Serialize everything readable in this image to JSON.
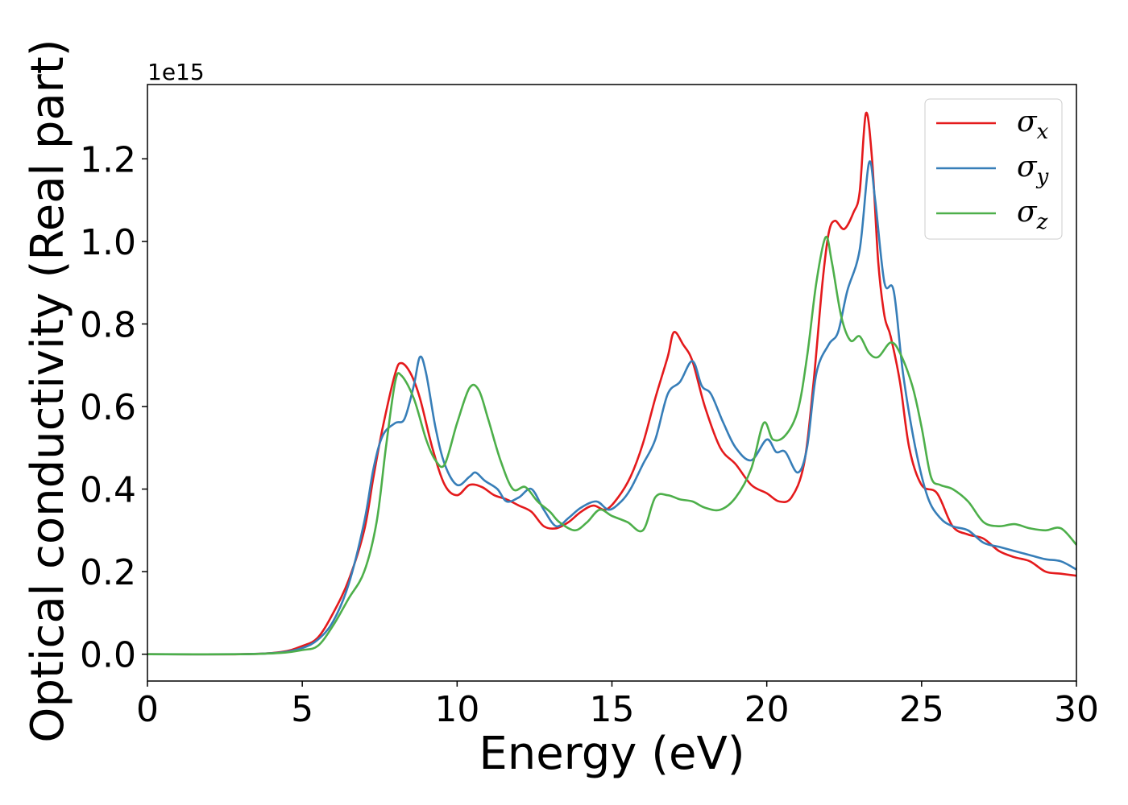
{
  "chart_data": {
    "type": "line",
    "xlabel": "Energy (eV)",
    "ylabel": "Optical conductivity (Real part)",
    "y_offset_label": "1e15",
    "xlim": [
      0,
      30
    ],
    "ylim": [
      -0.065,
      1.38
    ],
    "x_ticks": [
      0,
      5,
      10,
      15,
      20,
      25,
      30
    ],
    "x_tick_labels": [
      "0",
      "5",
      "10",
      "15",
      "20",
      "25",
      "30"
    ],
    "y_ticks": [
      0.0,
      0.2,
      0.4,
      0.6,
      0.8,
      1.0,
      1.2
    ],
    "y_tick_labels": [
      "0.0",
      "0.2",
      "0.4",
      "0.6",
      "0.8",
      "1.0",
      "1.2"
    ],
    "grid": false,
    "legend_position": "top-right",
    "series": [
      {
        "name": "σ_x",
        "label_base": "σ",
        "label_sub": "x",
        "color": "#e41a1c",
        "points": [
          [
            0,
            0
          ],
          [
            3,
            0
          ],
          [
            4.3,
            0.005
          ],
          [
            5,
            0.02
          ],
          [
            5.5,
            0.04
          ],
          [
            6,
            0.1
          ],
          [
            6.5,
            0.18
          ],
          [
            7,
            0.3
          ],
          [
            7.3,
            0.43
          ],
          [
            7.6,
            0.55
          ],
          [
            8,
            0.68
          ],
          [
            8.2,
            0.705
          ],
          [
            8.5,
            0.68
          ],
          [
            8.8,
            0.62
          ],
          [
            9.2,
            0.5
          ],
          [
            9.6,
            0.41
          ],
          [
            10,
            0.385
          ],
          [
            10.4,
            0.41
          ],
          [
            10.8,
            0.405
          ],
          [
            11.2,
            0.385
          ],
          [
            11.6,
            0.375
          ],
          [
            12,
            0.36
          ],
          [
            12.4,
            0.345
          ],
          [
            12.8,
            0.31
          ],
          [
            13.2,
            0.305
          ],
          [
            13.6,
            0.32
          ],
          [
            14,
            0.345
          ],
          [
            14.4,
            0.36
          ],
          [
            14.8,
            0.35
          ],
          [
            15.2,
            0.38
          ],
          [
            15.6,
            0.43
          ],
          [
            16,
            0.51
          ],
          [
            16.4,
            0.62
          ],
          [
            16.8,
            0.72
          ],
          [
            17,
            0.78
          ],
          [
            17.3,
            0.75
          ],
          [
            17.6,
            0.71
          ],
          [
            18,
            0.6
          ],
          [
            18.5,
            0.5
          ],
          [
            19,
            0.46
          ],
          [
            19.5,
            0.41
          ],
          [
            20,
            0.39
          ],
          [
            20.4,
            0.37
          ],
          [
            20.8,
            0.38
          ],
          [
            21.2,
            0.46
          ],
          [
            21.5,
            0.65
          ],
          [
            21.8,
            0.9
          ],
          [
            22,
            1.02
          ],
          [
            22.2,
            1.05
          ],
          [
            22.5,
            1.03
          ],
          [
            22.8,
            1.07
          ],
          [
            23,
            1.12
          ],
          [
            23.2,
            1.31
          ],
          [
            23.4,
            1.2
          ],
          [
            23.6,
            0.95
          ],
          [
            23.8,
            0.82
          ],
          [
            24,
            0.77
          ],
          [
            24.3,
            0.66
          ],
          [
            24.6,
            0.5
          ],
          [
            25,
            0.41
          ],
          [
            25.5,
            0.39
          ],
          [
            26,
            0.31
          ],
          [
            26.5,
            0.29
          ],
          [
            27,
            0.28
          ],
          [
            27.5,
            0.25
          ],
          [
            28,
            0.235
          ],
          [
            28.5,
            0.225
          ],
          [
            29,
            0.2
          ],
          [
            29.5,
            0.195
          ],
          [
            30,
            0.19
          ]
        ]
      },
      {
        "name": "σ_y",
        "label_base": "σ",
        "label_sub": "y",
        "color": "#377eb8",
        "points": [
          [
            0,
            0
          ],
          [
            3,
            0
          ],
          [
            4.3,
            0.004
          ],
          [
            5,
            0.015
          ],
          [
            5.5,
            0.035
          ],
          [
            6,
            0.08
          ],
          [
            6.5,
            0.17
          ],
          [
            7,
            0.32
          ],
          [
            7.3,
            0.45
          ],
          [
            7.6,
            0.53
          ],
          [
            8,
            0.56
          ],
          [
            8.3,
            0.57
          ],
          [
            8.6,
            0.65
          ],
          [
            8.8,
            0.72
          ],
          [
            9,
            0.68
          ],
          [
            9.3,
            0.55
          ],
          [
            9.6,
            0.46
          ],
          [
            10,
            0.41
          ],
          [
            10.4,
            0.43
          ],
          [
            10.6,
            0.44
          ],
          [
            10.9,
            0.42
          ],
          [
            11.3,
            0.4
          ],
          [
            11.6,
            0.37
          ],
          [
            12,
            0.38
          ],
          [
            12.4,
            0.4
          ],
          [
            12.8,
            0.35
          ],
          [
            13.2,
            0.31
          ],
          [
            13.6,
            0.33
          ],
          [
            14,
            0.355
          ],
          [
            14.5,
            0.37
          ],
          [
            14.9,
            0.35
          ],
          [
            15.3,
            0.37
          ],
          [
            15.6,
            0.4
          ],
          [
            16,
            0.46
          ],
          [
            16.4,
            0.52
          ],
          [
            16.8,
            0.63
          ],
          [
            17.2,
            0.66
          ],
          [
            17.6,
            0.71
          ],
          [
            17.9,
            0.65
          ],
          [
            18.2,
            0.63
          ],
          [
            18.6,
            0.56
          ],
          [
            19,
            0.5
          ],
          [
            19.5,
            0.47
          ],
          [
            20,
            0.52
          ],
          [
            20.3,
            0.49
          ],
          [
            20.6,
            0.49
          ],
          [
            21,
            0.44
          ],
          [
            21.3,
            0.5
          ],
          [
            21.6,
            0.68
          ],
          [
            22,
            0.75
          ],
          [
            22.3,
            0.78
          ],
          [
            22.6,
            0.88
          ],
          [
            23,
            0.98
          ],
          [
            23.3,
            1.19
          ],
          [
            23.5,
            1.1
          ],
          [
            23.8,
            0.9
          ],
          [
            24.1,
            0.88
          ],
          [
            24.4,
            0.68
          ],
          [
            24.8,
            0.5
          ],
          [
            25.2,
            0.38
          ],
          [
            25.6,
            0.33
          ],
          [
            26,
            0.31
          ],
          [
            26.5,
            0.3
          ],
          [
            27,
            0.27
          ],
          [
            27.5,
            0.26
          ],
          [
            28,
            0.25
          ],
          [
            28.5,
            0.24
          ],
          [
            29,
            0.23
          ],
          [
            29.5,
            0.225
          ],
          [
            30,
            0.205
          ]
        ]
      },
      {
        "name": "σ_z",
        "label_base": "σ",
        "label_sub": "z",
        "color": "#4daf4a",
        "points": [
          [
            0,
            0
          ],
          [
            3,
            0
          ],
          [
            4.3,
            0.003
          ],
          [
            5,
            0.01
          ],
          [
            5.5,
            0.02
          ],
          [
            6,
            0.07
          ],
          [
            6.5,
            0.135
          ],
          [
            7,
            0.2
          ],
          [
            7.4,
            0.32
          ],
          [
            7.7,
            0.5
          ],
          [
            8,
            0.66
          ],
          [
            8.2,
            0.675
          ],
          [
            8.6,
            0.62
          ],
          [
            9,
            0.52
          ],
          [
            9.3,
            0.47
          ],
          [
            9.6,
            0.46
          ],
          [
            10,
            0.56
          ],
          [
            10.4,
            0.645
          ],
          [
            10.7,
            0.64
          ],
          [
            11,
            0.57
          ],
          [
            11.4,
            0.47
          ],
          [
            11.8,
            0.4
          ],
          [
            12.2,
            0.405
          ],
          [
            12.6,
            0.37
          ],
          [
            13,
            0.345
          ],
          [
            13.3,
            0.32
          ],
          [
            13.8,
            0.3
          ],
          [
            14.2,
            0.32
          ],
          [
            14.6,
            0.35
          ],
          [
            15,
            0.335
          ],
          [
            15.5,
            0.32
          ],
          [
            16,
            0.3
          ],
          [
            16.4,
            0.38
          ],
          [
            16.8,
            0.385
          ],
          [
            17.2,
            0.375
          ],
          [
            17.6,
            0.37
          ],
          [
            18,
            0.355
          ],
          [
            18.5,
            0.35
          ],
          [
            19,
            0.38
          ],
          [
            19.5,
            0.45
          ],
          [
            19.9,
            0.56
          ],
          [
            20.2,
            0.52
          ],
          [
            20.6,
            0.53
          ],
          [
            21,
            0.59
          ],
          [
            21.3,
            0.72
          ],
          [
            21.6,
            0.9
          ],
          [
            21.9,
            1.01
          ],
          [
            22.1,
            0.95
          ],
          [
            22.4,
            0.82
          ],
          [
            22.7,
            0.76
          ],
          [
            23,
            0.77
          ],
          [
            23.3,
            0.73
          ],
          [
            23.6,
            0.72
          ],
          [
            24,
            0.755
          ],
          [
            24.3,
            0.73
          ],
          [
            24.7,
            0.65
          ],
          [
            25,
            0.55
          ],
          [
            25.3,
            0.43
          ],
          [
            25.6,
            0.41
          ],
          [
            26,
            0.4
          ],
          [
            26.5,
            0.37
          ],
          [
            27,
            0.32
          ],
          [
            27.5,
            0.31
          ],
          [
            28,
            0.315
          ],
          [
            28.5,
            0.305
          ],
          [
            29,
            0.3
          ],
          [
            29.5,
            0.305
          ],
          [
            30,
            0.265
          ]
        ]
      }
    ]
  }
}
